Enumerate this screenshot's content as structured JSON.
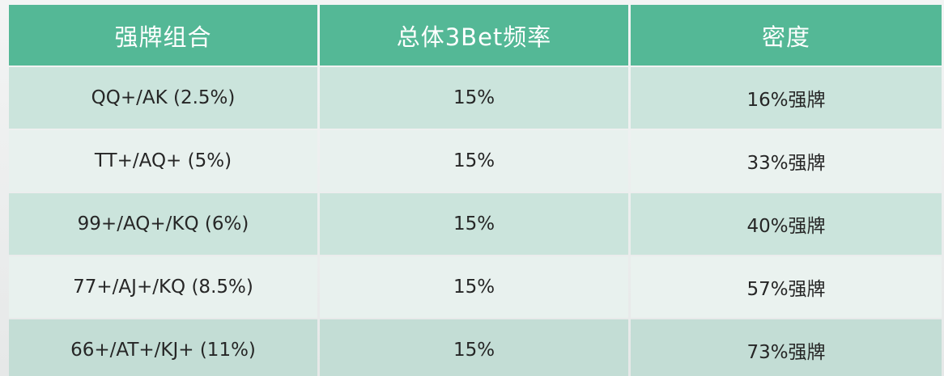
{
  "table": {
    "headers": [
      "强牌组合",
      "总体3Bet频率",
      "密度"
    ],
    "rows": [
      {
        "combo": "QQ+/AK (2.5%)",
        "frequency": "15%",
        "density": "16%强牌"
      },
      {
        "combo": "TT+/AQ+ (5%)",
        "frequency": "15%",
        "density": "33%强牌"
      },
      {
        "combo": "99+/AQ+/KQ (6%)",
        "frequency": "15%",
        "density": "40%强牌"
      },
      {
        "combo": "77+/AJ+/KQ (8.5%)",
        "frequency": "15%",
        "density": "57%强牌"
      },
      {
        "combo": "66+/AT+/KJ+ (11%)",
        "frequency": "15%",
        "density": "73%强牌"
      }
    ]
  },
  "colors": {
    "header_bg": "#54b896",
    "header_text": "#ffffff",
    "row_dark": "#cbe4dc",
    "row_light": "#e8f1ee",
    "cell_text": "#262626"
  }
}
